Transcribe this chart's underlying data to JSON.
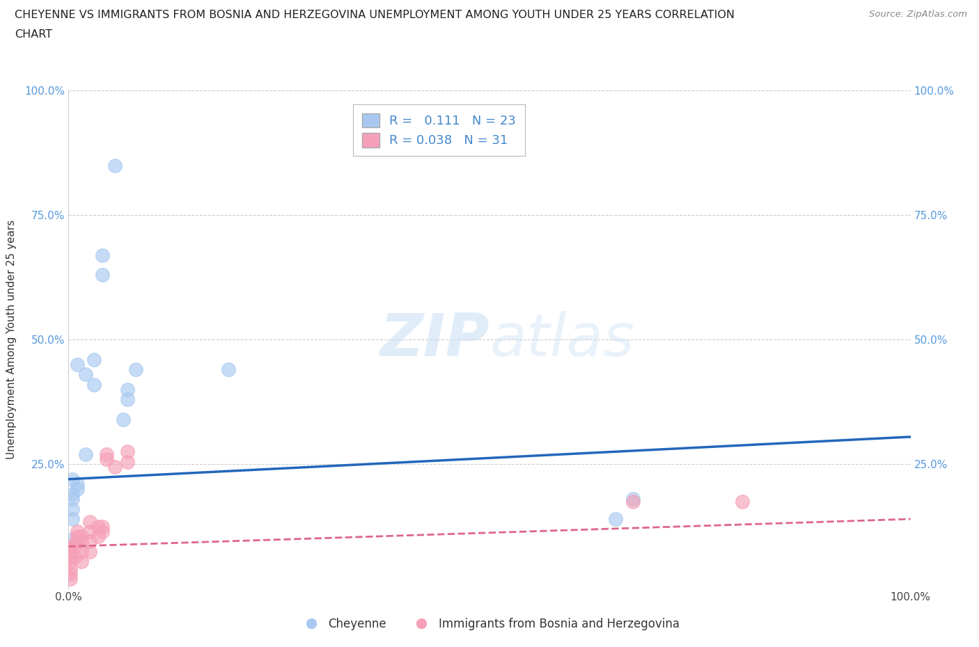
{
  "title_line1": "CHEYENNE VS IMMIGRANTS FROM BOSNIA AND HERZEGOVINA UNEMPLOYMENT AMONG YOUTH UNDER 25 YEARS CORRELATION",
  "title_line2": "CHART",
  "source": "Source: ZipAtlas.com",
  "ylabel": "Unemployment Among Youth under 25 years",
  "xlim": [
    0.0,
    1.0
  ],
  "ylim": [
    0.0,
    1.0
  ],
  "cheyenne_R": "0.111",
  "cheyenne_N": "23",
  "bosnia_R": "0.038",
  "bosnia_N": "31",
  "cheyenne_color": "#a8c8f0",
  "bosnia_color": "#f5a0b8",
  "cheyenne_line_color": "#2266bb",
  "bosnia_line_color": "#dd6688",
  "watermark_zip": "ZIP",
  "watermark_atlas": "atlas",
  "cheyenne_x": [
    0.02,
    0.04,
    0.02,
    0.005,
    0.005,
    0.005,
    0.01,
    0.01,
    0.005,
    0.005,
    0.005,
    0.01,
    0.03,
    0.03,
    0.08,
    0.07,
    0.19,
    0.65,
    0.67,
    0.04,
    0.055,
    0.07,
    0.065
  ],
  "cheyenne_y": [
    0.43,
    0.63,
    0.27,
    0.22,
    0.18,
    0.19,
    0.21,
    0.2,
    0.16,
    0.1,
    0.14,
    0.45,
    0.46,
    0.41,
    0.44,
    0.38,
    0.44,
    0.14,
    0.18,
    0.67,
    0.85,
    0.4,
    0.34
  ],
  "bosnia_x": [
    0.002,
    0.002,
    0.002,
    0.002,
    0.002,
    0.002,
    0.002,
    0.008,
    0.008,
    0.01,
    0.01,
    0.01,
    0.015,
    0.015,
    0.015,
    0.015,
    0.025,
    0.025,
    0.025,
    0.025,
    0.035,
    0.035,
    0.04,
    0.04,
    0.045,
    0.045,
    0.055,
    0.07,
    0.07,
    0.67,
    0.8
  ],
  "bosnia_y": [
    0.02,
    0.03,
    0.04,
    0.055,
    0.065,
    0.075,
    0.085,
    0.065,
    0.085,
    0.095,
    0.105,
    0.115,
    0.055,
    0.075,
    0.095,
    0.105,
    0.075,
    0.095,
    0.115,
    0.135,
    0.105,
    0.125,
    0.115,
    0.125,
    0.26,
    0.27,
    0.245,
    0.255,
    0.275,
    0.175,
    0.175
  ],
  "cheyenne_trend_x": [
    0.0,
    1.0
  ],
  "cheyenne_trend_y": [
    0.22,
    0.305
  ],
  "bosnia_trend_x": [
    0.0,
    1.0
  ],
  "bosnia_trend_y": [
    0.085,
    0.14
  ],
  "legend_label1": "Cheyenne",
  "legend_label2": "Immigrants from Bosnia and Herzegovina",
  "grid_color": "#cccccc",
  "bg_color": "#ffffff"
}
